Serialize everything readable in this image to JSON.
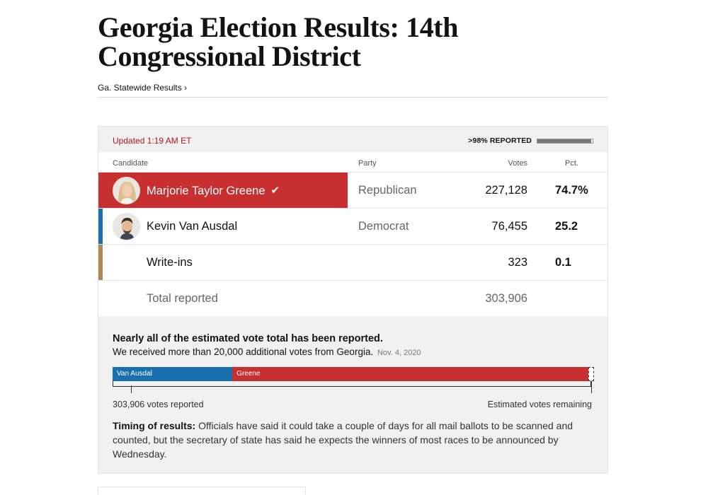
{
  "header": {
    "title": "Georgia Election Results: 14th Congressional District",
    "breadcrumb": "Ga. Statewide Results ›"
  },
  "status": {
    "updated": "Updated 1:19 AM ET",
    "reported_label": ">98% REPORTED",
    "reported_fraction": 0.98
  },
  "table": {
    "headers": {
      "candidate": "Candidate",
      "party": "Party",
      "votes": "Votes",
      "pct": "Pct."
    },
    "rows": [
      {
        "name": "Marjorie Taylor Greene",
        "party": "Republican",
        "votes": "227,128",
        "pct": "74.7%",
        "winner": true,
        "color": "#c82f31",
        "avatar": "person-photo-woman-blond"
      },
      {
        "name": "Kevin Van Ausdal",
        "party": "Democrat",
        "votes": "76,455",
        "pct": "25.2",
        "winner": false,
        "color": "#1a6faf",
        "avatar": "person-photo-man-dark-hair"
      },
      {
        "name": "Write-ins",
        "party": "",
        "votes": "323",
        "pct": "0.1",
        "color": "#ab8a57"
      }
    ],
    "total": {
      "label": "Total reported",
      "votes": "303,906"
    }
  },
  "estimate": {
    "headline": "Nearly all of the estimated vote total has been reported.",
    "subtext": "We received more than 20,000 additional votes from Georgia.",
    "date": "Nov. 4, 2020",
    "bar": [
      {
        "label": "Van Ausdal",
        "votes": 76455,
        "color": "#1a6faf"
      },
      {
        "label": "Greene",
        "votes": 227128,
        "color": "#c82f31"
      }
    ],
    "remaining_fraction": 0.012,
    "reported_label": "303,906 votes reported",
    "remaining_label": "Estimated votes remaining"
  },
  "timing": {
    "label": "Timing of results:",
    "text": " Officials have said it could take a couple of days for all mail ballots to be scanned and counted, but the secretary of state has said he expects the winners of most races to be announced by Wednesday."
  }
}
